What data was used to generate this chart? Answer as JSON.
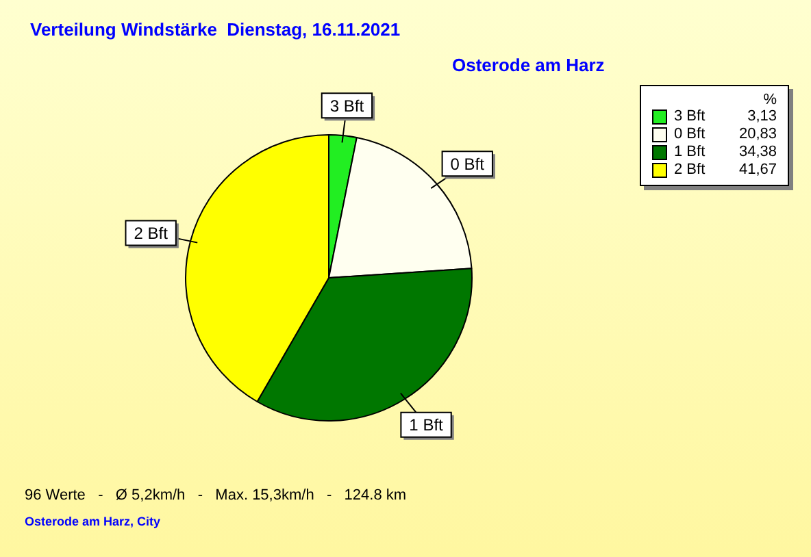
{
  "chart_data": {
    "type": "pie",
    "title": "Verteilung Windstärke  Dienstag, 16.11.2021",
    "subtitle": "Osterode am Harz",
    "legend_title": "%",
    "legend": "top right",
    "categories": [
      "3 Bft",
      "0 Bft",
      "1 Bft",
      "2 Bft"
    ],
    "values": [
      3.13,
      20.83,
      34.38,
      41.67
    ],
    "value_labels": [
      "3,13",
      "20,83",
      "34,38",
      "41,67"
    ],
    "colors": [
      "#22ee22",
      "#fffff0",
      "#007700",
      "#ffff00"
    ],
    "annotations": [
      "96 Werte   -   Ø 5,2km/h   -   Max. 15,3km/h   -   124.8 km",
      "Osterode am Harz, City"
    ]
  }
}
